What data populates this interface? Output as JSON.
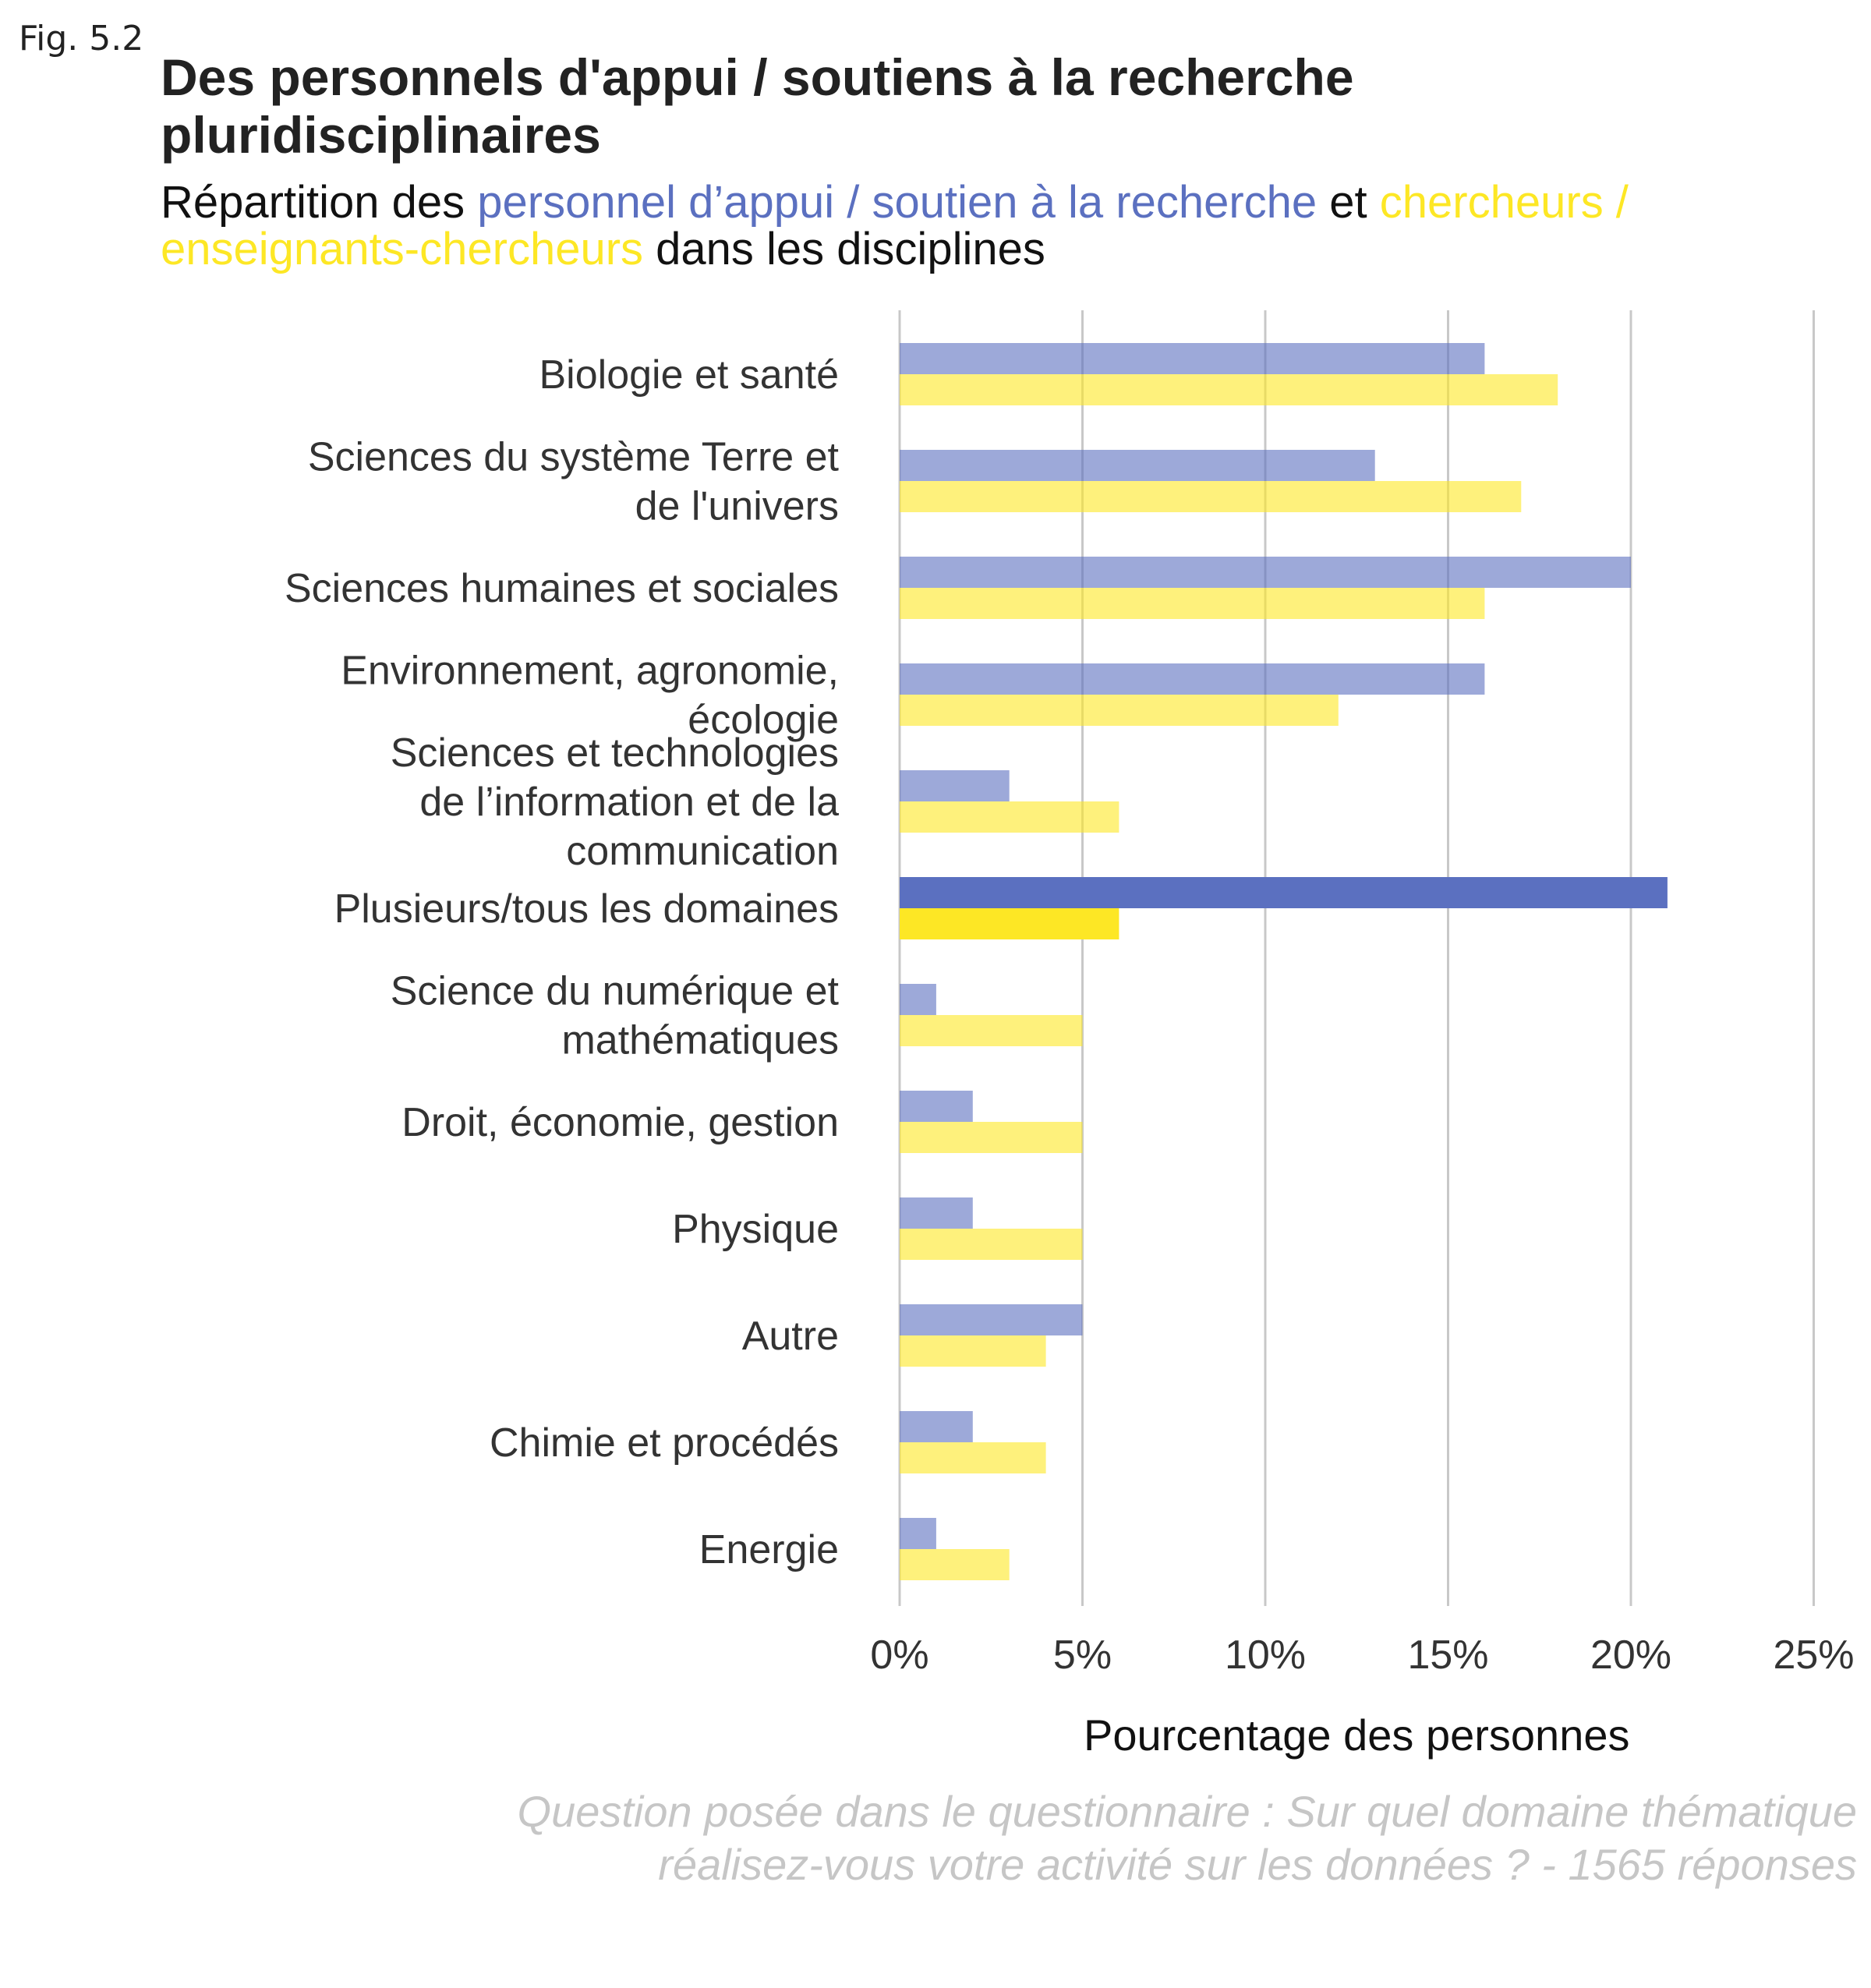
{
  "figure_label": "Fig. 5.2",
  "title": "Des personnels d'appui / soutiens à la recherche pluridisciplinaires",
  "subtitle": {
    "part1": "Répartition des ",
    "highlight1": "personnel d’appui / soutien à la recherche",
    "part2": " et ",
    "highlight2": "chercheurs / enseignants-chercheurs",
    "part3": " dans les disciplines"
  },
  "caption": "Question posée dans le questionnaire : Sur quel domaine thématique réalisez-vous votre activité sur les données ? - 1565 réponses",
  "colors": {
    "support": "#5b70c0",
    "researchers": "#fde725",
    "grid": "#c8c8c8"
  },
  "chart_data": {
    "type": "bar",
    "orientation": "horizontal",
    "categories": [
      [
        "Biologie et santé"
      ],
      [
        "Sciences du système Terre et",
        "de l'univers"
      ],
      [
        "Sciences humaines et sociales"
      ],
      [
        "Environnement, agronomie,",
        "écologie"
      ],
      [
        "Sciences et technologies",
        "de l’information et de la",
        "communication"
      ],
      [
        "Plusieurs/tous les domaines"
      ],
      [
        "Science du numérique et",
        "mathématiques"
      ],
      [
        "Droit, économie, gestion"
      ],
      [
        "Physique"
      ],
      [
        "Autre"
      ],
      [
        "Chimie et procédés"
      ],
      [
        "Energie"
      ]
    ],
    "series": [
      {
        "key": "support",
        "values": [
          16,
          13,
          20,
          16,
          3,
          21,
          1,
          2,
          2,
          5,
          2,
          1
        ]
      },
      {
        "key": "researchers",
        "values": [
          18,
          17,
          16,
          12,
          6,
          6,
          5,
          5,
          5,
          4,
          4,
          3
        ]
      }
    ],
    "highlighted_category": "Plusieurs/tous les domaines",
    "xlabel": "Pourcentage des personnes",
    "xlim": [
      0,
      25
    ],
    "xticks": [
      0,
      5,
      10,
      15,
      20,
      25
    ],
    "xtick_labels": [
      "0%",
      "5%",
      "10%",
      "15%",
      "20%",
      "25%"
    ],
    "grid": "vertical"
  }
}
